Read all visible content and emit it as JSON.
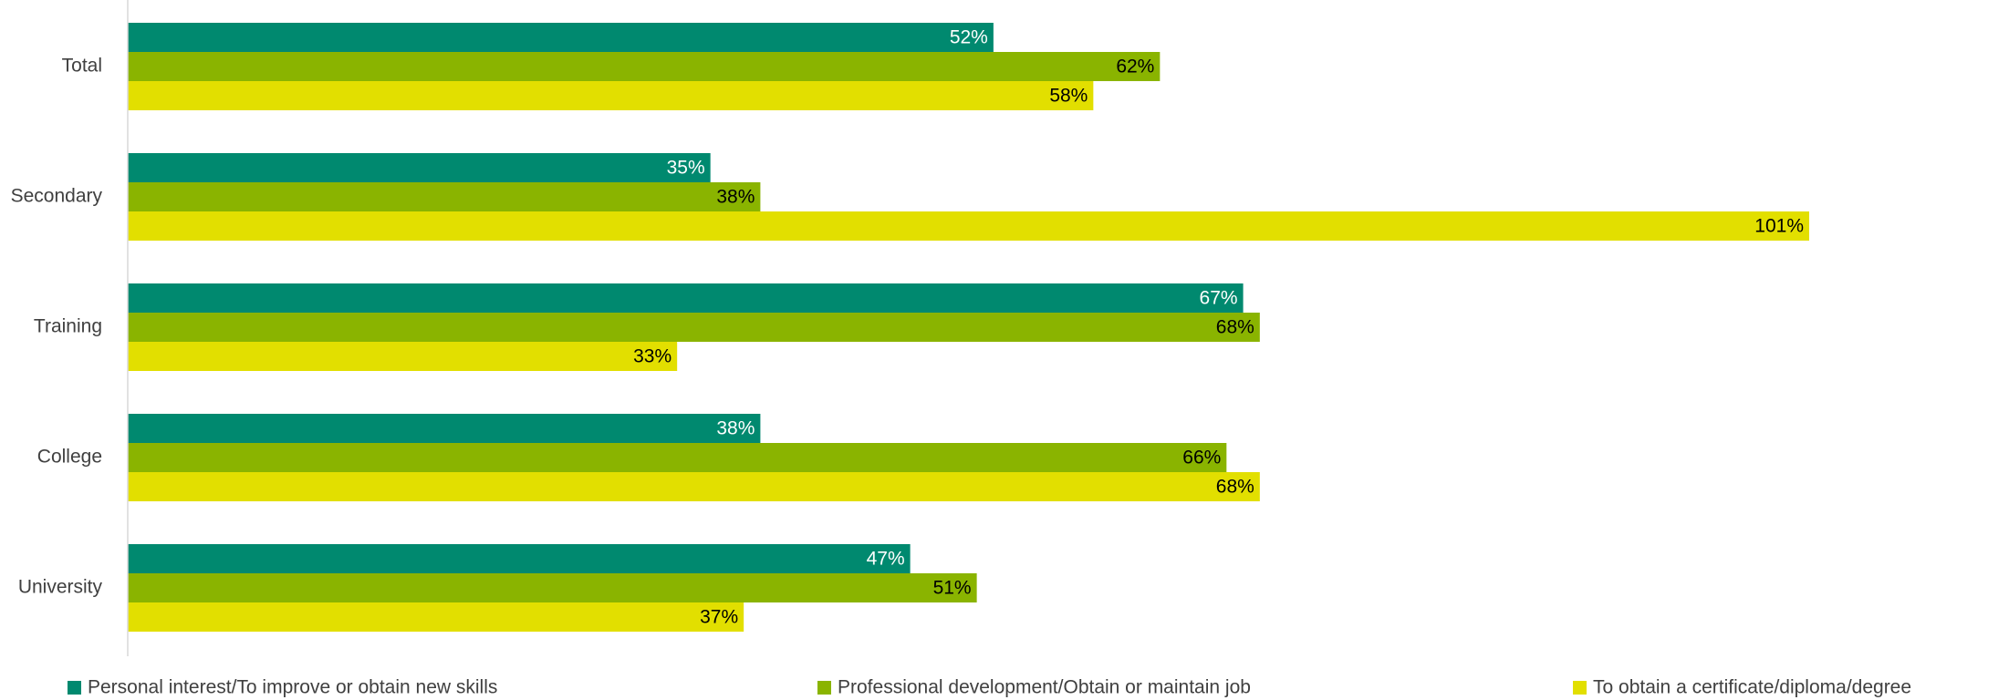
{
  "chart_data": {
    "type": "hbar",
    "categories": [
      "Total",
      "Secondary",
      "Training",
      "College",
      "University"
    ],
    "series": [
      {
        "name": "Personal interest/To improve or obtain new skills",
        "color": "#00896f",
        "values": [
          52,
          35,
          67,
          38,
          47
        ],
        "value_labels": [
          "52%",
          "35%",
          "67%",
          "38%",
          "47%"
        ]
      },
      {
        "name": "Professional development/Obtain or maintain job",
        "color": "#8ab400",
        "values": [
          62,
          38,
          68,
          66,
          51
        ],
        "value_labels": [
          "62%",
          "38%",
          "68%",
          "66%",
          "51%"
        ]
      },
      {
        "name": "To obtain a certificate/diploma/degree",
        "color": "#e2df00",
        "values": [
          58,
          101,
          33,
          68,
          37
        ],
        "value_labels": [
          "58%",
          "101%",
          "33%",
          "68%",
          "37%"
        ]
      }
    ],
    "legend": "bottom"
  }
}
